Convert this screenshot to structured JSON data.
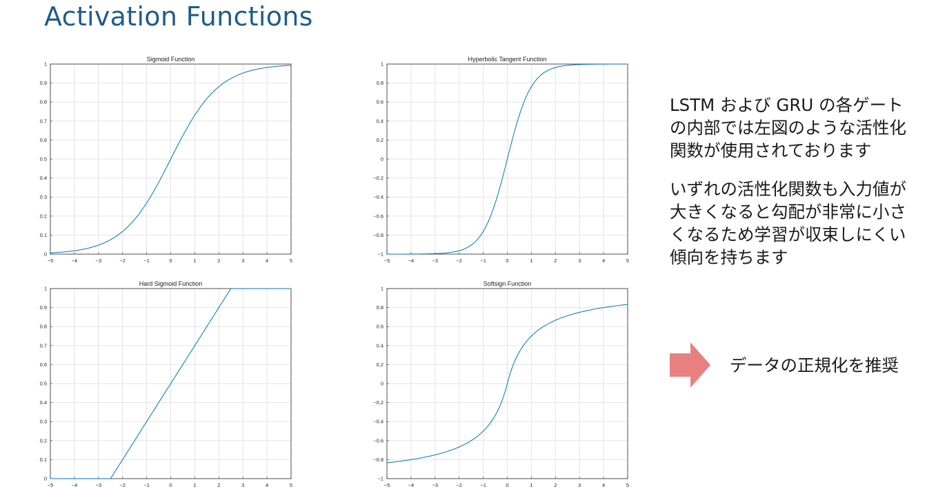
{
  "title": "Activation Functions",
  "description": {
    "paragraph1": "LSTM および GRU の各ゲート\nの内部では左図のような活性化\n関数が使用されております",
    "paragraph2": "いずれの活性化関数も入力値が\n大きくなると勾配が非常に小さ\nくなるため学習が収束しにくい\n傾向を持ちます"
  },
  "recommendation": "データの正規化を推奨",
  "colors": {
    "title": "#1f5c8b",
    "line": "#0072bd",
    "arrow": "#e88080",
    "grid": "#e3e3e3"
  },
  "chart_data": [
    {
      "type": "line",
      "title": "Sigmoid Function",
      "function": "sigmoid",
      "xlim": [
        -5,
        5
      ],
      "ylim": [
        0,
        1
      ],
      "x_ticks": [
        -5,
        -4,
        -3,
        -2,
        -1,
        0,
        1,
        2,
        3,
        4,
        5
      ],
      "y_ticks": [
        0,
        0.1,
        0.2,
        0.3,
        0.4,
        0.5,
        0.6,
        0.7,
        0.8,
        0.9,
        1
      ],
      "x_tick_labels": [
        "−5",
        "−4",
        "−3",
        "−2",
        "−1",
        "0",
        "1",
        "2",
        "3",
        "4",
        "5"
      ],
      "y_tick_labels": [
        "0",
        "0.1",
        "0.2",
        "0.3",
        "0.4",
        "0.5",
        "0.6",
        "0.7",
        "0.8",
        "0.9",
        "1"
      ],
      "grid": true,
      "x": [
        -5,
        -4,
        -3,
        -2,
        -1,
        0,
        1,
        2,
        3,
        4,
        5
      ],
      "y": [
        0.007,
        0.018,
        0.047,
        0.119,
        0.269,
        0.5,
        0.731,
        0.881,
        0.953,
        0.982,
        0.993
      ]
    },
    {
      "type": "line",
      "title": "Hyperbolic Tangent Function",
      "function": "tanh",
      "xlim": [
        -5,
        5
      ],
      "ylim": [
        -1,
        1
      ],
      "x_ticks": [
        -5,
        -4,
        -3,
        -2,
        -1,
        0,
        1,
        2,
        3,
        4,
        5
      ],
      "y_ticks": [
        -1,
        -0.8,
        -0.6,
        -0.4,
        -0.2,
        0,
        0.2,
        0.4,
        0.6,
        0.8,
        1
      ],
      "x_tick_labels": [
        "−5",
        "−4",
        "−3",
        "−2",
        "−1",
        "0",
        "1",
        "2",
        "3",
        "4",
        "5"
      ],
      "y_tick_labels": [
        "−1",
        "−0.8",
        "−0.6",
        "−0.4",
        "−0.2",
        "0",
        "0.2",
        "0.4",
        "0.6",
        "0.8",
        "1"
      ],
      "grid": true,
      "x": [
        -5,
        -4,
        -3,
        -2,
        -1,
        0,
        1,
        2,
        3,
        4,
        5
      ],
      "y": [
        -1.0,
        -0.999,
        -0.995,
        -0.964,
        -0.762,
        0,
        0.762,
        0.964,
        0.995,
        0.999,
        1.0
      ]
    },
    {
      "type": "line",
      "title": "Hard Sigmoid Function",
      "function": "hard_sigmoid",
      "xlim": [
        -5,
        5
      ],
      "ylim": [
        0,
        1
      ],
      "x_ticks": [
        -5,
        -4,
        -3,
        -2,
        -1,
        0,
        1,
        2,
        3,
        4,
        5
      ],
      "y_ticks": [
        0,
        0.1,
        0.2,
        0.3,
        0.4,
        0.5,
        0.6,
        0.7,
        0.8,
        0.9,
        1
      ],
      "x_tick_labels": [
        "−5",
        "−4",
        "−3",
        "−2",
        "−1",
        "0",
        "1",
        "2",
        "3",
        "4",
        "5"
      ],
      "y_tick_labels": [
        "0",
        "0.1",
        "0.2",
        "0.3",
        "0.4",
        "0.5",
        "0.6",
        "0.7",
        "0.8",
        "0.9",
        "1"
      ],
      "grid": true,
      "x": [
        -5,
        -2.5,
        0,
        2.5,
        5
      ],
      "y": [
        0,
        0,
        0.5,
        1,
        1
      ]
    },
    {
      "type": "line",
      "title": "Softsign Function",
      "function": "softsign",
      "xlim": [
        -5,
        5
      ],
      "ylim": [
        -1,
        1
      ],
      "x_ticks": [
        -5,
        -4,
        -3,
        -2,
        -1,
        0,
        1,
        2,
        3,
        4,
        5
      ],
      "y_ticks": [
        -1,
        -0.8,
        -0.6,
        -0.4,
        -0.2,
        0,
        0.2,
        0.4,
        0.6,
        0.8,
        1
      ],
      "x_tick_labels": [
        "−5",
        "−4",
        "−3",
        "−2",
        "−1",
        "0",
        "1",
        "2",
        "3",
        "4",
        "5"
      ],
      "y_tick_labels": [
        "−1",
        "−0.8",
        "−0.6",
        "−0.4",
        "−0.2",
        "0",
        "0.2",
        "0.4",
        "0.6",
        "0.8",
        "1"
      ],
      "grid": true,
      "x": [
        -5,
        -4,
        -3,
        -2,
        -1,
        0,
        1,
        2,
        3,
        4,
        5
      ],
      "y": [
        -0.833,
        -0.8,
        -0.75,
        -0.667,
        -0.5,
        0,
        0.5,
        0.667,
        0.75,
        0.8,
        0.833
      ]
    }
  ]
}
